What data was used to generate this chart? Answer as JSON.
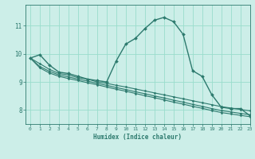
{
  "xlabel": "Humidex (Indice chaleur)",
  "ylabel": "",
  "bg_color": "#cceee8",
  "grid_color": "#99ddcc",
  "line_color": "#2d7a6e",
  "xlim": [
    -0.5,
    23
  ],
  "ylim": [
    7.5,
    11.75
  ],
  "yticks": [
    8,
    9,
    10,
    11
  ],
  "xticks": [
    0,
    1,
    2,
    3,
    4,
    5,
    6,
    7,
    8,
    9,
    10,
    11,
    12,
    13,
    14,
    15,
    16,
    17,
    18,
    19,
    20,
    21,
    22,
    23
  ],
  "series": [
    {
      "x": [
        0,
        1,
        2,
        3,
        4,
        5,
        6,
        7,
        8,
        9,
        10,
        11,
        12,
        13,
        14,
        15,
        16,
        17,
        18,
        19,
        20,
        21,
        22,
        23
      ],
      "y": [
        9.85,
        9.97,
        9.6,
        9.35,
        9.3,
        9.2,
        9.1,
        9.05,
        9.0,
        9.75,
        10.35,
        10.55,
        10.9,
        11.2,
        11.3,
        11.15,
        10.7,
        9.4,
        9.2,
        8.55,
        8.1,
        8.05,
        8.05,
        7.8
      ],
      "marker": "D",
      "markersize": 2.0,
      "linewidth": 1.0
    },
    {
      "x": [
        0,
        1,
        2,
        3,
        4,
        5,
        6,
        7,
        8,
        9,
        10,
        11,
        12,
        13,
        14,
        15,
        16,
        17,
        18,
        19,
        20,
        21,
        22,
        23
      ],
      "y": [
        9.85,
        9.65,
        9.45,
        9.3,
        9.25,
        9.15,
        9.1,
        9.0,
        8.95,
        8.88,
        8.82,
        8.75,
        8.68,
        8.61,
        8.54,
        8.47,
        8.4,
        8.33,
        8.26,
        8.19,
        8.12,
        8.07,
        8.02,
        7.97
      ],
      "marker": "D",
      "markersize": 1.5,
      "linewidth": 0.8
    },
    {
      "x": [
        0,
        1,
        2,
        3,
        4,
        5,
        6,
        7,
        8,
        9,
        10,
        11,
        12,
        13,
        14,
        15,
        16,
        17,
        18,
        19,
        20,
        21,
        22,
        23
      ],
      "y": [
        9.85,
        9.55,
        9.38,
        9.25,
        9.18,
        9.1,
        9.03,
        8.95,
        8.88,
        8.8,
        8.73,
        8.65,
        8.58,
        8.5,
        8.43,
        8.35,
        8.28,
        8.2,
        8.13,
        8.05,
        7.98,
        7.93,
        7.88,
        7.83
      ],
      "marker": "D",
      "markersize": 1.5,
      "linewidth": 0.8
    },
    {
      "x": [
        0,
        1,
        2,
        3,
        4,
        5,
        6,
        7,
        8,
        9,
        10,
        11,
        12,
        13,
        14,
        15,
        16,
        17,
        18,
        19,
        20,
        21,
        22,
        23
      ],
      "y": [
        9.85,
        9.5,
        9.32,
        9.2,
        9.12,
        9.05,
        8.97,
        8.9,
        8.82,
        8.74,
        8.67,
        8.59,
        8.51,
        8.44,
        8.36,
        8.28,
        8.21,
        8.13,
        8.06,
        7.98,
        7.91,
        7.86,
        7.81,
        7.76
      ],
      "marker": "D",
      "markersize": 1.5,
      "linewidth": 0.8
    }
  ]
}
